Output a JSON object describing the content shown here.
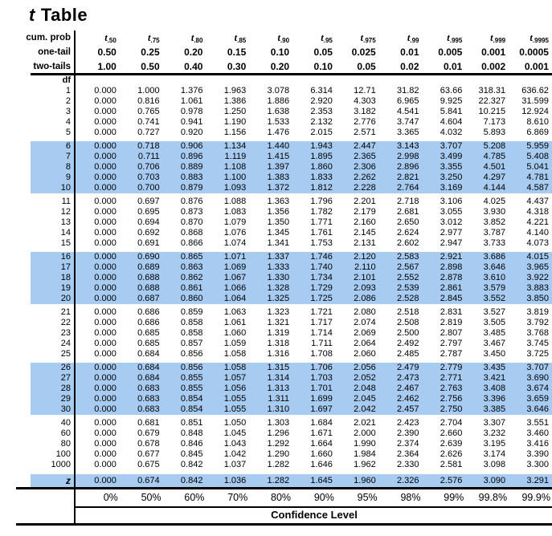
{
  "title": {
    "t_letter": "t",
    "rest": "Table"
  },
  "colors": {
    "highlight": "#a7cbf1",
    "text": "#000000",
    "background": "#ffffff"
  },
  "header": {
    "cum_prob_label": "cum. prob",
    "one_tail_label": "one-tail",
    "two_tails_label": "two-tails",
    "df_label": "df",
    "t_base": "t",
    "t_subscripts": [
      ".50",
      ".75",
      ".80",
      ".85",
      ".90",
      ".95",
      ".975",
      ".99",
      ".995",
      ".999",
      ".9995"
    ],
    "one_tail": [
      "0.50",
      "0.25",
      "0.20",
      "0.15",
      "0.10",
      "0.05",
      "0.025",
      "0.01",
      "0.005",
      "0.001",
      "0.0005"
    ],
    "two_tails": [
      "1.00",
      "0.50",
      "0.40",
      "0.30",
      "0.20",
      "0.10",
      "0.05",
      "0.02",
      "0.01",
      "0.002",
      "0.001"
    ]
  },
  "rows": [
    {
      "df": "1",
      "gap": false,
      "highlight": false,
      "z": false,
      "values": [
        "0.000",
        "1.000",
        "1.376",
        "1.963",
        "3.078",
        "6.314",
        "12.71",
        "31.82",
        "63.66",
        "318.31",
        "636.62"
      ]
    },
    {
      "df": "2",
      "gap": false,
      "highlight": false,
      "z": false,
      "values": [
        "0.000",
        "0.816",
        "1.061",
        "1.386",
        "1.886",
        "2.920",
        "4.303",
        "6.965",
        "9.925",
        "22.327",
        "31.599"
      ]
    },
    {
      "df": "3",
      "gap": false,
      "highlight": false,
      "z": false,
      "values": [
        "0.000",
        "0.765",
        "0.978",
        "1.250",
        "1.638",
        "2.353",
        "3.182",
        "4.541",
        "5.841",
        "10.215",
        "12.924"
      ]
    },
    {
      "df": "4",
      "gap": false,
      "highlight": false,
      "z": false,
      "values": [
        "0.000",
        "0.741",
        "0.941",
        "1.190",
        "1.533",
        "2.132",
        "2.776",
        "3.747",
        "4.604",
        "7.173",
        "8.610"
      ]
    },
    {
      "df": "5",
      "gap": false,
      "highlight": false,
      "z": false,
      "values": [
        "0.000",
        "0.727",
        "0.920",
        "1.156",
        "1.476",
        "2.015",
        "2.571",
        "3.365",
        "4.032",
        "5.893",
        "6.869"
      ]
    },
    {
      "df": "6",
      "gap": true,
      "highlight": true,
      "z": false,
      "values": [
        "0.000",
        "0.718",
        "0.906",
        "1.134",
        "1.440",
        "1.943",
        "2.447",
        "3.143",
        "3.707",
        "5.208",
        "5.959"
      ]
    },
    {
      "df": "7",
      "gap": false,
      "highlight": true,
      "z": false,
      "values": [
        "0.000",
        "0.711",
        "0.896",
        "1.119",
        "1.415",
        "1.895",
        "2.365",
        "2.998",
        "3.499",
        "4.785",
        "5.408"
      ]
    },
    {
      "df": "8",
      "gap": false,
      "highlight": true,
      "z": false,
      "values": [
        "0.000",
        "0.706",
        "0.889",
        "1.108",
        "1.397",
        "1.860",
        "2.306",
        "2.896",
        "3.355",
        "4.501",
        "5.041"
      ]
    },
    {
      "df": "9",
      "gap": false,
      "highlight": true,
      "z": false,
      "values": [
        "0.000",
        "0.703",
        "0.883",
        "1.100",
        "1.383",
        "1.833",
        "2.262",
        "2.821",
        "3.250",
        "4.297",
        "4.781"
      ]
    },
    {
      "df": "10",
      "gap": false,
      "highlight": true,
      "z": false,
      "values": [
        "0.000",
        "0.700",
        "0.879",
        "1.093",
        "1.372",
        "1.812",
        "2.228",
        "2.764",
        "3.169",
        "4.144",
        "4.587"
      ]
    },
    {
      "df": "11",
      "gap": true,
      "highlight": false,
      "z": false,
      "values": [
        "0.000",
        "0.697",
        "0.876",
        "1.088",
        "1.363",
        "1.796",
        "2.201",
        "2.718",
        "3.106",
        "4.025",
        "4.437"
      ]
    },
    {
      "df": "12",
      "gap": false,
      "highlight": false,
      "z": false,
      "values": [
        "0.000",
        "0.695",
        "0.873",
        "1.083",
        "1.356",
        "1.782",
        "2.179",
        "2.681",
        "3.055",
        "3.930",
        "4.318"
      ]
    },
    {
      "df": "13",
      "gap": false,
      "highlight": false,
      "z": false,
      "values": [
        "0.000",
        "0.694",
        "0.870",
        "1.079",
        "1.350",
        "1.771",
        "2.160",
        "2.650",
        "3.012",
        "3.852",
        "4.221"
      ]
    },
    {
      "df": "14",
      "gap": false,
      "highlight": false,
      "z": false,
      "values": [
        "0.000",
        "0.692",
        "0.868",
        "1.076",
        "1.345",
        "1.761",
        "2.145",
        "2.624",
        "2.977",
        "3.787",
        "4.140"
      ]
    },
    {
      "df": "15",
      "gap": false,
      "highlight": false,
      "z": false,
      "values": [
        "0.000",
        "0.691",
        "0.866",
        "1.074",
        "1.341",
        "1.753",
        "2.131",
        "2.602",
        "2.947",
        "3.733",
        "4.073"
      ]
    },
    {
      "df": "16",
      "gap": true,
      "highlight": true,
      "z": false,
      "values": [
        "0.000",
        "0.690",
        "0.865",
        "1.071",
        "1.337",
        "1.746",
        "2.120",
        "2.583",
        "2.921",
        "3.686",
        "4.015"
      ]
    },
    {
      "df": "17",
      "gap": false,
      "highlight": true,
      "z": false,
      "values": [
        "0.000",
        "0.689",
        "0.863",
        "1.069",
        "1.333",
        "1.740",
        "2.110",
        "2.567",
        "2.898",
        "3.646",
        "3.965"
      ]
    },
    {
      "df": "18",
      "gap": false,
      "highlight": true,
      "z": false,
      "values": [
        "0.000",
        "0.688",
        "0.862",
        "1.067",
        "1.330",
        "1.734",
        "2.101",
        "2.552",
        "2.878",
        "3.610",
        "3.922"
      ]
    },
    {
      "df": "19",
      "gap": false,
      "highlight": true,
      "z": false,
      "values": [
        "0.000",
        "0.688",
        "0.861",
        "1.066",
        "1.328",
        "1.729",
        "2.093",
        "2.539",
        "2.861",
        "3.579",
        "3.883"
      ]
    },
    {
      "df": "20",
      "gap": false,
      "highlight": true,
      "z": false,
      "values": [
        "0.000",
        "0.687",
        "0.860",
        "1.064",
        "1.325",
        "1.725",
        "2.086",
        "2.528",
        "2.845",
        "3.552",
        "3.850"
      ]
    },
    {
      "df": "21",
      "gap": true,
      "highlight": false,
      "z": false,
      "values": [
        "0.000",
        "0.686",
        "0.859",
        "1.063",
        "1.323",
        "1.721",
        "2.080",
        "2.518",
        "2.831",
        "3.527",
        "3.819"
      ]
    },
    {
      "df": "22",
      "gap": false,
      "highlight": false,
      "z": false,
      "values": [
        "0.000",
        "0.686",
        "0.858",
        "1.061",
        "1.321",
        "1.717",
        "2.074",
        "2.508",
        "2.819",
        "3.505",
        "3.792"
      ]
    },
    {
      "df": "23",
      "gap": false,
      "highlight": false,
      "z": false,
      "values": [
        "0.000",
        "0.685",
        "0.858",
        "1.060",
        "1.319",
        "1.714",
        "2.069",
        "2.500",
        "2.807",
        "3.485",
        "3.768"
      ]
    },
    {
      "df": "24",
      "gap": false,
      "highlight": false,
      "z": false,
      "values": [
        "0.000",
        "0.685",
        "0.857",
        "1.059",
        "1.318",
        "1.711",
        "2.064",
        "2.492",
        "2.797",
        "3.467",
        "3.745"
      ]
    },
    {
      "df": "25",
      "gap": false,
      "highlight": false,
      "z": false,
      "values": [
        "0.000",
        "0.684",
        "0.856",
        "1.058",
        "1.316",
        "1.708",
        "2.060",
        "2.485",
        "2.787",
        "3.450",
        "3.725"
      ]
    },
    {
      "df": "26",
      "gap": true,
      "highlight": true,
      "z": false,
      "values": [
        "0.000",
        "0.684",
        "0.856",
        "1.058",
        "1.315",
        "1.706",
        "2.056",
        "2.479",
        "2.779",
        "3.435",
        "3.707"
      ]
    },
    {
      "df": "27",
      "gap": false,
      "highlight": true,
      "z": false,
      "values": [
        "0.000",
        "0.684",
        "0.855",
        "1.057",
        "1.314",
        "1.703",
        "2.052",
        "2.473",
        "2.771",
        "3.421",
        "3.690"
      ]
    },
    {
      "df": "28",
      "gap": false,
      "highlight": true,
      "z": false,
      "values": [
        "0.000",
        "0.683",
        "0.855",
        "1.056",
        "1.313",
        "1.701",
        "2.048",
        "2.467",
        "2.763",
        "3.408",
        "3.674"
      ]
    },
    {
      "df": "29",
      "gap": false,
      "highlight": true,
      "z": false,
      "values": [
        "0.000",
        "0.683",
        "0.854",
        "1.055",
        "1.311",
        "1.699",
        "2.045",
        "2.462",
        "2.756",
        "3.396",
        "3.659"
      ]
    },
    {
      "df": "30",
      "gap": false,
      "highlight": true,
      "z": false,
      "values": [
        "0.000",
        "0.683",
        "0.854",
        "1.055",
        "1.310",
        "1.697",
        "2.042",
        "2.457",
        "2.750",
        "3.385",
        "3.646"
      ]
    },
    {
      "df": "40",
      "gap": true,
      "highlight": false,
      "z": false,
      "values": [
        "0.000",
        "0.681",
        "0.851",
        "1.050",
        "1.303",
        "1.684",
        "2.021",
        "2.423",
        "2.704",
        "3.307",
        "3.551"
      ]
    },
    {
      "df": "60",
      "gap": false,
      "highlight": false,
      "z": false,
      "values": [
        "0.000",
        "0.679",
        "0.848",
        "1.045",
        "1.296",
        "1.671",
        "2.000",
        "2.390",
        "2.660",
        "3.232",
        "3.460"
      ]
    },
    {
      "df": "80",
      "gap": false,
      "highlight": false,
      "z": false,
      "values": [
        "0.000",
        "0.678",
        "0.846",
        "1.043",
        "1.292",
        "1.664",
        "1.990",
        "2.374",
        "2.639",
        "3.195",
        "3.416"
      ]
    },
    {
      "df": "100",
      "gap": false,
      "highlight": false,
      "z": false,
      "values": [
        "0.000",
        "0.677",
        "0.845",
        "1.042",
        "1.290",
        "1.660",
        "1.984",
        "2.364",
        "2.626",
        "3.174",
        "3.390"
      ]
    },
    {
      "df": "1000",
      "gap": false,
      "highlight": false,
      "z": false,
      "values": [
        "0.000",
        "0.675",
        "0.842",
        "1.037",
        "1.282",
        "1.646",
        "1.962",
        "2.330",
        "2.581",
        "3.098",
        "3.300"
      ]
    },
    {
      "df": "z",
      "gap": true,
      "highlight": true,
      "z": true,
      "values": [
        "0.000",
        "0.674",
        "0.842",
        "1.036",
        "1.282",
        "1.645",
        "1.960",
        "2.326",
        "2.576",
        "3.090",
        "3.291"
      ]
    }
  ],
  "footer": {
    "percents": [
      "0%",
      "50%",
      "60%",
      "70%",
      "80%",
      "90%",
      "95%",
      "98%",
      "99%",
      "99.8%",
      "99.9%"
    ],
    "confidence_label": "Confidence Level"
  }
}
